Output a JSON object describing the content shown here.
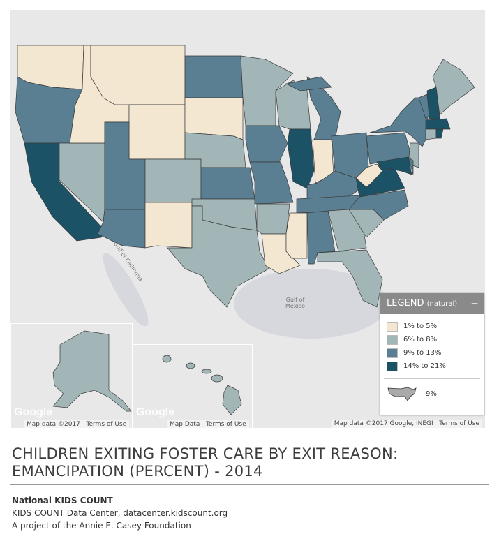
{
  "title": "CHILDREN EXITING FOSTER CARE BY EXIT REASON: EMANCIPATION (PERCENT) - 2014",
  "title_line1": "CHILDREN EXITING FOSTER CARE BY EXIT REASON:",
  "title_line2": "EMANCIPATION (PERCENT) - 2014",
  "source": {
    "org": "National KIDS COUNT",
    "line2": "KIDS COUNT Data Center, datacenter.kidscount.org",
    "line3": "A project of the Annie E. Casey Foundation"
  },
  "legend": {
    "title": "LEGEND",
    "subtitle": "(natural)",
    "collapse_label": "−",
    "items": [
      {
        "label": "1% to 5%",
        "color": "#f4e7d1",
        "key": "c1"
      },
      {
        "label": "6% to 8%",
        "color": "#a2b6b7",
        "key": "c2"
      },
      {
        "label": "9% to 13%",
        "color": "#5a7f93",
        "key": "c3"
      },
      {
        "label": "14% to 21%",
        "color": "#1c5266",
        "key": "c4"
      }
    ],
    "national_value": "9%"
  },
  "map": {
    "labels": {
      "gulf_california": "Gulf of California",
      "gulf_mexico": "Gulf of Mexico"
    },
    "attribution_main": "Map data ©2017 Google, INEGI",
    "terms": "Terms of Use",
    "alaska_attribution": "Map data ©2017",
    "hawaii_attribution": "Map Data",
    "google": "Google",
    "states": {
      "WA": "c1",
      "OR": "c3",
      "CA": "c4",
      "NV": "c2",
      "ID": "c1",
      "MT": "c1",
      "WY": "c1",
      "UT": "c3",
      "AZ": "c3",
      "CO": "c2",
      "NM": "c1",
      "ND": "c3",
      "SD": "c1",
      "NE": "c2",
      "KS": "c3",
      "OK": "c2",
      "TX": "c2",
      "MN": "c2",
      "IA": "c3",
      "MO": "c3",
      "AR": "c2",
      "LA": "c1",
      "WI": "c2",
      "IL": "c4",
      "MI": "c3",
      "IN": "c1",
      "OH": "c3",
      "KY": "c3",
      "TN": "c3",
      "MS": "c1",
      "AL": "c3",
      "GA": "c2",
      "FL": "c2",
      "SC": "c2",
      "NC": "c3",
      "VA": "c4",
      "WV": "c1",
      "PA": "c3",
      "NY": "c3",
      "VT": "c3",
      "NH": "c4",
      "ME": "c2",
      "MA": "c4",
      "CT": "c2",
      "RI": "c4",
      "NJ": "c2",
      "DE": "c3",
      "MD": "c4",
      "AK": "c2",
      "HI": "c2"
    }
  }
}
